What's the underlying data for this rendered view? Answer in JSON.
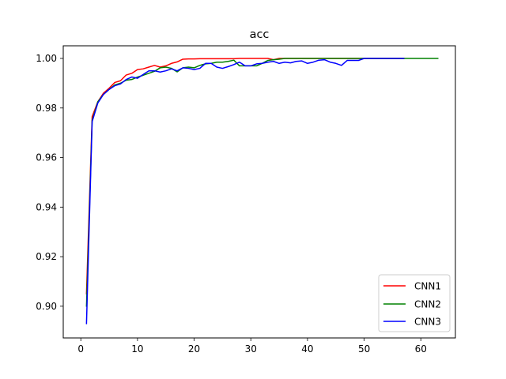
{
  "chart_data": {
    "type": "line",
    "title": "acc",
    "xlabel": "",
    "ylabel": "",
    "xlim": [
      -3.1,
      66.1
    ],
    "ylim": [
      0.8872,
      1.0051
    ],
    "xticks": [
      0,
      10,
      20,
      30,
      40,
      50,
      60
    ],
    "yticks": [
      0.9,
      0.92,
      0.94,
      0.96,
      0.98,
      1.0
    ],
    "xtick_labels": [
      "0",
      "10",
      "20",
      "30",
      "40",
      "50",
      "60"
    ],
    "ytick_labels": [
      "0.90",
      "0.92",
      "0.94",
      "0.96",
      "0.98",
      "1.00"
    ],
    "grid": false,
    "legend_position": "lower-right",
    "series": [
      {
        "name": "CNN1",
        "color": "#ff0000",
        "x": [
          1,
          2,
          3,
          4,
          5,
          6,
          7,
          8,
          9,
          10,
          11,
          12,
          13,
          14,
          15,
          16,
          17,
          18,
          19,
          20,
          21,
          22,
          23,
          24,
          25,
          26,
          27,
          28,
          29,
          30,
          31,
          32,
          33,
          34,
          35,
          36,
          37,
          38,
          39,
          40,
          41,
          42,
          43,
          44,
          45,
          46,
          47,
          48,
          49,
          50,
          51,
          52,
          53,
          54,
          55,
          56,
          57
        ],
        "y": [
          0.905,
          0.9765,
          0.9825,
          0.986,
          0.988,
          0.9903,
          0.991,
          0.9933,
          0.994,
          0.9955,
          0.9958,
          0.9965,
          0.9972,
          0.9965,
          0.997,
          0.998,
          0.9986,
          0.9997,
          0.9998,
          0.9998,
          0.9999,
          0.9999,
          0.9999,
          0.9999,
          0.9999,
          0.9999,
          0.9999,
          1.0,
          1.0,
          1.0,
          1.0,
          1.0,
          1.0,
          0.9995,
          1.0,
          1.0,
          1.0,
          1.0,
          1.0,
          1.0,
          1.0,
          1.0,
          1.0,
          1.0,
          1.0,
          1.0,
          1.0,
          1.0,
          1.0,
          1.0,
          1.0,
          1.0,
          1.0,
          1.0,
          1.0,
          1.0,
          1.0
        ]
      },
      {
        "name": "CNN2",
        "color": "#008000",
        "x": [
          1,
          2,
          3,
          4,
          5,
          6,
          7,
          8,
          9,
          10,
          11,
          12,
          13,
          14,
          15,
          16,
          17,
          18,
          19,
          20,
          21,
          22,
          23,
          24,
          25,
          26,
          27,
          28,
          29,
          30,
          31,
          32,
          33,
          34,
          35,
          36,
          37,
          38,
          39,
          40,
          41,
          42,
          43,
          44,
          45,
          46,
          47,
          48,
          49,
          50,
          51,
          52,
          53,
          54,
          55,
          56,
          57,
          58,
          59,
          60,
          61,
          62,
          63
        ],
        "y": [
          0.9,
          0.975,
          0.9825,
          0.9855,
          0.9875,
          0.9893,
          0.99,
          0.9912,
          0.9915,
          0.9925,
          0.9932,
          0.994,
          0.9948,
          0.9962,
          0.9965,
          0.996,
          0.9946,
          0.9962,
          0.9965,
          0.9962,
          0.9972,
          0.9978,
          0.998,
          0.9985,
          0.9985,
          0.9988,
          0.9993,
          0.997,
          0.997,
          0.997,
          0.997,
          0.998,
          0.9992,
          0.9995,
          0.9997,
          1.0,
          1.0,
          1.0,
          1.0,
          1.0,
          1.0,
          1.0,
          1.0,
          1.0,
          1.0,
          1.0,
          1.0,
          1.0,
          1.0,
          1.0,
          1.0,
          1.0,
          1.0,
          1.0,
          1.0,
          1.0,
          1.0,
          1.0,
          1.0,
          1.0,
          1.0,
          1.0,
          1.0
        ]
      },
      {
        "name": "CNN3",
        "color": "#0000ff",
        "x": [
          1,
          2,
          3,
          4,
          5,
          6,
          7,
          8,
          9,
          10,
          11,
          12,
          13,
          14,
          15,
          16,
          17,
          18,
          19,
          20,
          21,
          22,
          23,
          24,
          25,
          26,
          27,
          28,
          29,
          30,
          31,
          32,
          33,
          34,
          35,
          36,
          37,
          38,
          39,
          40,
          41,
          42,
          43,
          44,
          45,
          46,
          47,
          48,
          49,
          50,
          51,
          52,
          53,
          54,
          55,
          56,
          57
        ],
        "y": [
          0.893,
          0.9745,
          0.982,
          0.9855,
          0.9875,
          0.989,
          0.9897,
          0.9915,
          0.9925,
          0.992,
          0.9935,
          0.995,
          0.995,
          0.9945,
          0.995,
          0.9958,
          0.995,
          0.9962,
          0.996,
          0.9955,
          0.996,
          0.998,
          0.998,
          0.9965,
          0.996,
          0.9967,
          0.9975,
          0.9985,
          0.997,
          0.997,
          0.9978,
          0.998,
          0.9985,
          0.9988,
          0.998,
          0.9985,
          0.9982,
          0.9988,
          0.999,
          0.998,
          0.9985,
          0.9993,
          0.9995,
          0.9985,
          0.998,
          0.9972,
          0.9992,
          0.9992,
          0.9992,
          1.0,
          1.0,
          1.0,
          1.0,
          1.0,
          1.0,
          1.0,
          1.0
        ]
      }
    ]
  }
}
